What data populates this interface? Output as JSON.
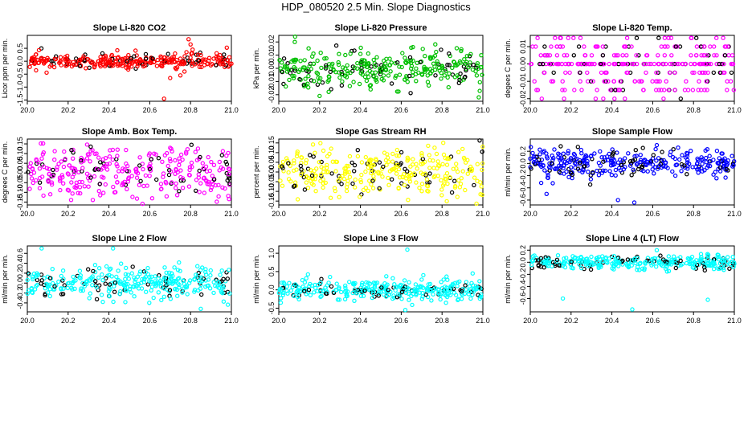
{
  "figure_title": "HDP_080520  2.5 Min. Slope Diagnostics",
  "chart_data": [
    {
      "type": "scatter",
      "title": "Slope Li-820 CO2",
      "ylabel": "Licor ppm per min.",
      "color": "#ff0000",
      "xlim": [
        20.0,
        21.0
      ],
      "xticks": [
        "20.0",
        "20.2",
        "20.4",
        "20.6",
        "20.8",
        "21.0"
      ],
      "ylim": [
        -1.55,
        1.0
      ],
      "yticks": [
        "-1.5",
        "-1.0",
        "-0.5",
        "0.0",
        "0.5"
      ],
      "spread": 0.14,
      "outliers": [
        [
          20.67,
          -1.45
        ],
        [
          20.7,
          -0.65
        ],
        [
          20.73,
          -0.3
        ],
        [
          20.75,
          -0.55
        ],
        [
          20.77,
          -0.4
        ],
        [
          20.79,
          0.85
        ],
        [
          20.8,
          0.65
        ],
        [
          20.81,
          0.45
        ],
        [
          20.78,
          0.35
        ]
      ],
      "seed": 11
    },
    {
      "type": "scatter",
      "title": "Slope Li-820 Pressure",
      "ylabel": "kPa per min.",
      "color": "#00c000",
      "xlim": [
        20.0,
        21.0
      ],
      "xticks": [
        "20.0",
        "20.2",
        "20.4",
        "20.6",
        "20.8",
        "21.0"
      ],
      "ylim": [
        -0.025,
        0.025
      ],
      "yticks": [
        "-0.02",
        "-0.01",
        "0.00",
        "0.01",
        "0.02"
      ],
      "spread": 0.007,
      "outliers": [
        [
          20.08,
          0.024
        ],
        [
          20.2,
          -0.021
        ],
        [
          20.45,
          -0.016
        ],
        [
          20.98,
          -0.022
        ]
      ],
      "seed": 23
    },
    {
      "type": "scatter",
      "title": "Slope Li-820 Temp.",
      "ylabel": "degees C per min.",
      "color": "#ff00ff",
      "xlim": [
        20.0,
        21.0
      ],
      "xticks": [
        "20.0",
        "20.2",
        "20.4",
        "20.6",
        "20.8",
        "21.0"
      ],
      "ylim": [
        -0.0215,
        0.0165
      ],
      "yticks": [
        "-0.02",
        "-0.01",
        "0.00",
        "0.01"
      ],
      "spread": 0.0,
      "levels": [
        -0.02,
        -0.015,
        -0.01,
        -0.005,
        0.0,
        0.005,
        0.01,
        0.015
      ],
      "outliers": [],
      "seed": 37
    },
    {
      "type": "scatter",
      "title": "Slope Amb. Box Temp.",
      "ylabel": "degrees C per min.",
      "color": "#ff00ff",
      "xlim": [
        20.0,
        21.0
      ],
      "xticks": [
        "20.0",
        "20.2",
        "20.4",
        "20.6",
        "20.8",
        "21.0"
      ],
      "ylim": [
        -0.165,
        0.175
      ],
      "yticks": [
        "-0.15",
        "-0.10",
        "-0.05",
        "0.00",
        "0.05",
        "0.10",
        "0.15"
      ],
      "spread": 0.07,
      "outliers": [],
      "seed": 41
    },
    {
      "type": "scatter",
      "title": "Slope Gas Stream RH",
      "ylabel": "percent per min.",
      "color": "#ffff00",
      "xlim": [
        20.0,
        21.0
      ],
      "xticks": [
        "20.0",
        "20.2",
        "20.4",
        "20.6",
        "20.8",
        "21.0"
      ],
      "ylim": [
        -0.17,
        0.17
      ],
      "yticks": [
        "-0.15",
        "-0.10",
        "-0.05",
        "0.00",
        "0.05",
        "0.10",
        "0.15"
      ],
      "spread": 0.07,
      "outliers": [],
      "seed": 53
    },
    {
      "type": "scatter",
      "title": "Slope Sample Flow",
      "ylabel": "ml/min per min.",
      "color": "#0000ff",
      "xlim": [
        20.0,
        21.0
      ],
      "xticks": [
        "20.0",
        "20.2",
        "20.4",
        "20.6",
        "20.8",
        "21.0"
      ],
      "ylim": [
        -0.68,
        0.4
      ],
      "yticks": [
        "-0.6",
        "-0.4",
        "-0.2",
        "0.0",
        "0.2"
      ],
      "spread": 0.1,
      "outliers": [
        [
          20.43,
          -0.6
        ],
        [
          20.51,
          -0.64
        ],
        [
          20.62,
          0.3
        ],
        [
          20.08,
          -0.5
        ]
      ],
      "seed": 67
    },
    {
      "type": "scatter",
      "title": "Slope Line 2 Flow",
      "ylabel": "ml/min per min.",
      "color": "#00ffff",
      "xlim": [
        20.0,
        21.0
      ],
      "xticks": [
        "20.0",
        "20.2",
        "20.4",
        "20.6",
        "20.8",
        "21.0"
      ],
      "ylim": [
        -0.58,
        0.75
      ],
      "yticks": [
        "-0.4",
        "-0.2",
        "0.0",
        "0.2",
        "0.4",
        "0.6"
      ],
      "spread": 0.15,
      "outliers": [
        [
          20.07,
          0.7
        ],
        [
          20.42,
          0.7
        ],
        [
          20.85,
          -0.52
        ]
      ],
      "seed": 71
    },
    {
      "type": "scatter",
      "title": "Slope Line 3 Flow",
      "ylabel": "ml/min per min.",
      "color": "#00ffff",
      "xlim": [
        20.0,
        21.0
      ],
      "xticks": [
        "20.0",
        "20.2",
        "20.4",
        "20.6",
        "20.8",
        "21.0"
      ],
      "ylim": [
        -0.6,
        1.2
      ],
      "yticks": [
        "-0.5",
        "0.0",
        "0.5",
        "1.0"
      ],
      "spread": 0.14,
      "outliers": [
        [
          20.63,
          1.1
        ],
        [
          20.62,
          -0.55
        ],
        [
          20.95,
          0.45
        ],
        [
          20.01,
          -0.35
        ]
      ],
      "seed": 83
    },
    {
      "type": "scatter",
      "title": "Slope Line 4 (LT) Flow",
      "ylabel": "ml/min per min.",
      "color": "#00ffff",
      "xlim": [
        20.0,
        21.0
      ],
      "xticks": [
        "20.0",
        "20.2",
        "20.4",
        "20.6",
        "20.8",
        "21.0"
      ],
      "ylim": [
        -0.82,
        0.27
      ],
      "yticks": [
        "-0.6",
        "-0.4",
        "-0.2",
        "0.0",
        "0.2"
      ],
      "spread": 0.06,
      "outliers": [
        [
          20.16,
          -0.6
        ],
        [
          20.5,
          -0.78
        ],
        [
          20.87,
          -0.62
        ],
        [
          20.62,
          0.2
        ]
      ],
      "seed": 97
    }
  ]
}
